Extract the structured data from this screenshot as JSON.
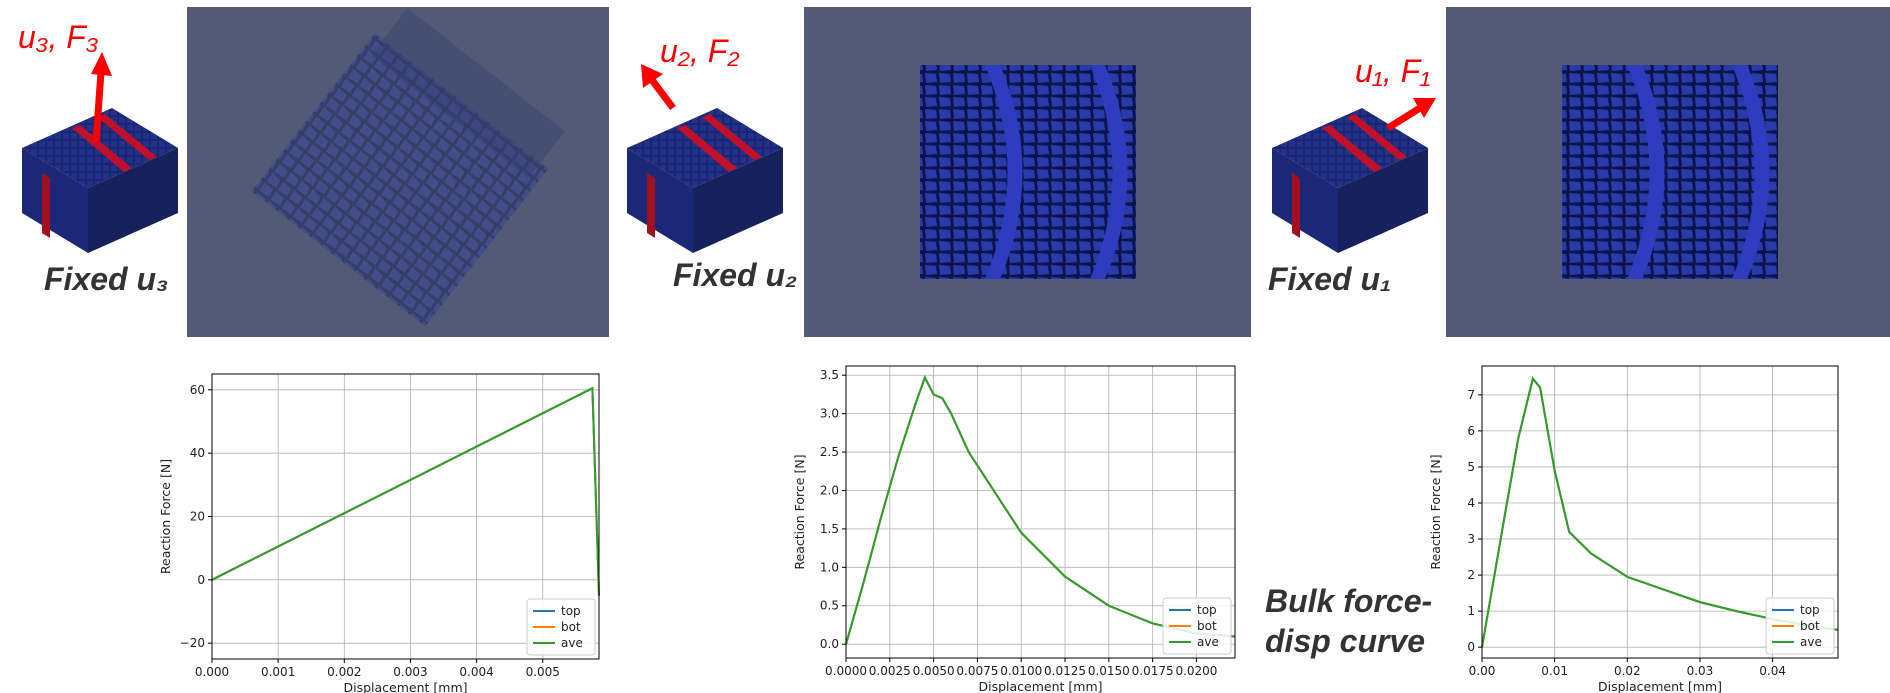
{
  "labels": {
    "load_3": "u₃, F₃",
    "fixed_3": "Fixed u₃",
    "load_2": "u₂, F₂",
    "fixed_2": "Fixed u₂",
    "load_1": "u₁, F₁",
    "fixed_1": "Fixed u₁",
    "caption": [
      "Bulk force-",
      "disp curve"
    ]
  },
  "chart_data": [
    {
      "type": "line",
      "x_label": "Displacement [mm]",
      "y_label": "Reaction Force [N]",
      "grid": true,
      "legend": "lower right",
      "x": [
        0,
        0.00575,
        0.00585
      ],
      "series": [
        {
          "name": "top",
          "color": "#1f77b4",
          "values": [
            0,
            60.5,
            -5
          ]
        },
        {
          "name": "bot",
          "color": "#ff7f0e",
          "values": [
            0,
            60.5,
            -5
          ]
        },
        {
          "name": "ave",
          "color": "#2ca02c",
          "values": [
            0,
            60.5,
            -5
          ]
        }
      ],
      "xlim": [
        0,
        0.00585
      ],
      "ylim": [
        -25,
        65
      ],
      "xticks": [
        {
          "value": 0,
          "label": "0.000"
        },
        {
          "value": 0.001,
          "label": "0.001"
        },
        {
          "value": 0.002,
          "label": "0.002"
        },
        {
          "value": 0.003,
          "label": "0.003"
        },
        {
          "value": 0.004,
          "label": "0.004"
        },
        {
          "value": 0.005,
          "label": "0.005"
        }
      ],
      "yticks": [
        {
          "value": -20,
          "label": "−20"
        },
        0,
        20,
        40,
        60
      ]
    },
    {
      "type": "line",
      "x_label": "Displacement [mm]",
      "y_label": "Reaction Force [N]",
      "grid": true,
      "legend": "lower right",
      "x": [
        0,
        0.001,
        0.002,
        0.003,
        0.004,
        0.0045,
        0.005,
        0.0055,
        0.006,
        0.007,
        0.008,
        0.01,
        0.0125,
        0.015,
        0.0175,
        0.02,
        0.0222
      ],
      "series": [
        {
          "name": "top",
          "color": "#1f77b4",
          "values": [
            0,
            0.8,
            1.65,
            2.45,
            3.15,
            3.47,
            3.25,
            3.2,
            3.0,
            2.5,
            2.15,
            1.45,
            0.88,
            0.5,
            0.27,
            0.14,
            0.1
          ]
        },
        {
          "name": "bot",
          "color": "#ff7f0e",
          "values": [
            0,
            0.8,
            1.65,
            2.45,
            3.15,
            3.47,
            3.25,
            3.2,
            3.0,
            2.5,
            2.15,
            1.45,
            0.88,
            0.5,
            0.27,
            0.14,
            0.1
          ]
        },
        {
          "name": "ave",
          "color": "#2ca02c",
          "values": [
            0,
            0.8,
            1.65,
            2.45,
            3.15,
            3.47,
            3.25,
            3.2,
            3.0,
            2.5,
            2.15,
            1.45,
            0.88,
            0.5,
            0.27,
            0.14,
            0.1
          ]
        }
      ],
      "xlim": [
        0,
        0.0222
      ],
      "ylim": [
        -0.18,
        3.62
      ],
      "xticks": [
        {
          "value": 0,
          "label": "0.0000"
        },
        {
          "value": 0.0025,
          "label": "0.0025"
        },
        {
          "value": 0.005,
          "label": "0.0050"
        },
        {
          "value": 0.0075,
          "label": "0.0075"
        },
        {
          "value": 0.01,
          "label": "0.0100"
        },
        {
          "value": 0.0125,
          "label": "0.0125"
        },
        {
          "value": 0.015,
          "label": "0.0150"
        },
        {
          "value": 0.0175,
          "label": "0.0175"
        },
        {
          "value": 0.02,
          "label": "0.0200"
        }
      ],
      "yticks": [
        {
          "value": 0,
          "label": "0.0"
        },
        0.5,
        {
          "value": 1,
          "label": "1.0"
        },
        1.5,
        {
          "value": 2,
          "label": "2.0"
        },
        2.5,
        {
          "value": 3,
          "label": "3.0"
        },
        3.5
      ]
    },
    {
      "type": "line",
      "x_label": "Displacement [mm]",
      "y_label": "Reaction Force [N]",
      "grid": true,
      "legend": "lower right",
      "x": [
        0,
        0.003,
        0.005,
        0.007,
        0.008,
        0.01,
        0.012,
        0.015,
        0.02,
        0.025,
        0.03,
        0.035,
        0.04,
        0.045,
        0.049
      ],
      "series": [
        {
          "name": "top",
          "color": "#1f77b4",
          "values": [
            0,
            3.5,
            5.8,
            7.45,
            7.2,
            4.9,
            3.2,
            2.6,
            1.95,
            1.6,
            1.25,
            1.0,
            0.78,
            0.6,
            0.48
          ]
        },
        {
          "name": "bot",
          "color": "#ff7f0e",
          "values": [
            0,
            3.5,
            5.8,
            7.45,
            7.2,
            4.9,
            3.2,
            2.6,
            1.95,
            1.6,
            1.25,
            1.0,
            0.78,
            0.6,
            0.48
          ]
        },
        {
          "name": "ave",
          "color": "#2ca02c",
          "values": [
            0,
            3.5,
            5.8,
            7.45,
            7.2,
            4.9,
            3.2,
            2.6,
            1.95,
            1.6,
            1.25,
            1.0,
            0.78,
            0.6,
            0.48
          ]
        }
      ],
      "xlim": [
        0,
        0.049
      ],
      "ylim": [
        -0.3,
        7.8
      ],
      "xticks": [
        {
          "value": 0,
          "label": "0.00"
        },
        {
          "value": 0.01,
          "label": "0.01"
        },
        {
          "value": 0.02,
          "label": "0.02"
        },
        {
          "value": 0.03,
          "label": "0.03"
        },
        {
          "value": 0.04,
          "label": "0.04"
        }
      ],
      "yticks": [
        0,
        1,
        2,
        3,
        4,
        5,
        6,
        7
      ]
    }
  ]
}
